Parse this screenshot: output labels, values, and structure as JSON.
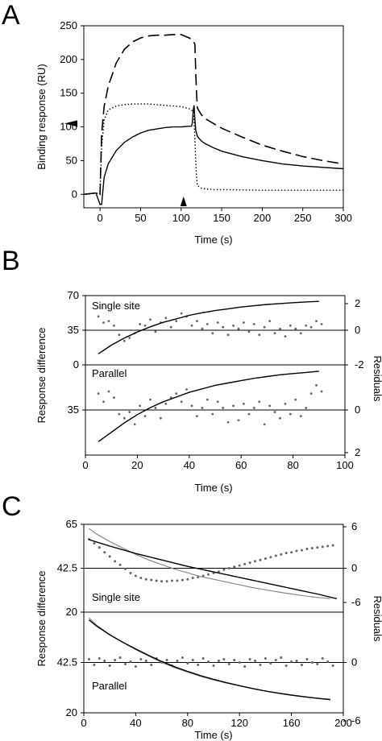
{
  "panel_labels": [
    "A",
    "B",
    "C"
  ],
  "chart_data": [
    {
      "panel": "A",
      "type": "line",
      "xlabel": "Time (s)",
      "ylabel": "Binding response (RU)",
      "xlim": [
        -20,
        300
      ],
      "ylim": [
        -20,
        250
      ],
      "xticks": [
        "0",
        "50",
        "100",
        "150",
        "200",
        "250",
        "300"
      ],
      "yticks": [
        "0",
        "50",
        "100",
        "150",
        "200",
        "250"
      ],
      "markers": [
        {
          "type": "arrowhead-left",
          "axis": "y",
          "value": 105
        },
        {
          "type": "arrowhead-up",
          "axis": "x",
          "value": 103
        }
      ],
      "series": [
        {
          "style": "dashed",
          "x": [
            -20,
            -5,
            0,
            2,
            5,
            10,
            20,
            30,
            40,
            50,
            60,
            70,
            80,
            90,
            100,
            110,
            115,
            117,
            118,
            119,
            120,
            125,
            130,
            140,
            150,
            175,
            200,
            225,
            250,
            275,
            300
          ],
          "y": [
            0,
            2,
            0,
            90,
            130,
            160,
            195,
            215,
            226,
            232,
            235,
            236,
            236,
            237,
            237,
            232,
            228,
            222,
            180,
            150,
            128,
            118,
            112,
            105,
            98,
            85,
            73,
            64,
            56,
            50,
            45
          ]
        },
        {
          "style": "dotted",
          "x": [
            -20,
            -5,
            0,
            2,
            5,
            10,
            20,
            30,
            40,
            50,
            60,
            70,
            80,
            90,
            100,
            110,
            115,
            116,
            117,
            118,
            119,
            120,
            125,
            130,
            140,
            150,
            200,
            250,
            300
          ],
          "y": [
            0,
            2,
            0,
            70,
            110,
            125,
            131,
            133,
            134,
            134,
            134,
            133,
            132,
            131,
            130,
            127,
            123,
            110,
            80,
            50,
            25,
            13,
            9,
            8,
            7,
            7,
            6,
            6,
            6
          ]
        },
        {
          "style": "solid",
          "x": [
            -20,
            -5,
            0,
            2,
            5,
            10,
            20,
            30,
            40,
            50,
            60,
            70,
            80,
            90,
            100,
            110,
            113,
            114,
            115,
            116,
            117,
            118,
            120,
            125,
            130,
            140,
            150,
            175,
            200,
            225,
            250,
            275,
            300
          ],
          "y": [
            0,
            2,
            -15,
            -15,
            25,
            45,
            65,
            77,
            85,
            91,
            95,
            97,
            99,
            100,
            100,
            101,
            101,
            108,
            125,
            132,
            110,
            95,
            86,
            79,
            75,
            69,
            64,
            56,
            50,
            45,
            42,
            40,
            38
          ]
        }
      ]
    },
    {
      "panel": "B",
      "type": "scatter",
      "xlabel": "Time (s)",
      "ylabel": "Response difference",
      "y2label": "Residuals",
      "xlim": [
        0,
        100
      ],
      "xticks": [
        "0",
        "20",
        "40",
        "60",
        "80",
        "100"
      ],
      "subplots": [
        {
          "label": "Single site",
          "ylim": [
            0,
            70
          ],
          "y2lim": [
            -2,
            2
          ],
          "yticks": [
            "0",
            "35",
            "70"
          ],
          "y2ticks": [
            "-2",
            "0",
            "2"
          ],
          "fit": {
            "x": [
              5,
              10,
              15,
              20,
              25,
              30,
              35,
              40,
              45,
              50,
              55,
              60,
              65,
              70,
              75,
              80,
              85,
              90
            ],
            "y": [
              8,
              18,
              26,
              33,
              39,
              44,
              48,
              52,
              55,
              57.5,
              59.5,
              61.5,
              63,
              64.5,
              65.5,
              66.5,
              67.3,
              68
            ]
          },
          "residuals": {
            "x": [
              5,
              7,
              9,
              11,
              13,
              15,
              17,
              19,
              21,
              23,
              25,
              27,
              29,
              31,
              33,
              35,
              37,
              39,
              41,
              43,
              45,
              47,
              49,
              51,
              53,
              55,
              57,
              59,
              61,
              63,
              65,
              67,
              69,
              71,
              73,
              75,
              77,
              79,
              81,
              83,
              85,
              87,
              89,
              91
            ],
            "y": [
              0.9,
              0.5,
              0.6,
              0.3,
              -0.3,
              -0.7,
              -0.5,
              -0.2,
              0.4,
              0.3,
              0.7,
              -0.1,
              0.5,
              0.8,
              0.2,
              0.6,
              1.1,
              0.9,
              0.3,
              0.6,
              0.1,
              0.4,
              -0.2,
              0.5,
              0.2,
              -0.3,
              0.3,
              0.1,
              0.5,
              -0.1,
              0.4,
              -0.3,
              0.2,
              0.6,
              -0.2,
              0.1,
              -0.4,
              0.3,
              0.1,
              -0.2,
              0.3,
              0.2,
              0.6,
              0.4
            ]
          }
        },
        {
          "label": "Parallel",
          "ylim": [
            0,
            70
          ],
          "y2lim": [
            -2,
            2
          ],
          "yticks": [
            "0",
            "35"
          ],
          "y2ticks": [
            "-2",
            "0",
            "2"
          ],
          "fit": {
            "x": [
              5,
              10,
              15,
              20,
              25,
              30,
              35,
              40,
              45,
              50,
              55,
              60,
              65,
              70,
              75,
              80,
              85,
              90
            ],
            "y": [
              8,
              16,
              24,
              31,
              37,
              42,
              46,
              50,
              53,
              56,
              58,
              60,
              62,
              63.5,
              65,
              66,
              67,
              68
            ]
          },
          "residuals": {
            "x": [
              5,
              7,
              9,
              11,
              13,
              15,
              17,
              19,
              21,
              23,
              25,
              27,
              29,
              31,
              33,
              35,
              37,
              39,
              41,
              43,
              45,
              47,
              49,
              51,
              53,
              55,
              57,
              59,
              61,
              63,
              65,
              67,
              69,
              71,
              73,
              75,
              77,
              79,
              81,
              83,
              85,
              87,
              89,
              91
            ],
            "y": [
              0.8,
              0.4,
              0.9,
              0.6,
              -0.2,
              -0.4,
              -0.1,
              -0.7,
              0.2,
              -0.3,
              0.5,
              0.1,
              -0.4,
              0.3,
              0.6,
              0.8,
              0.4,
              1.0,
              0.2,
              -0.3,
              0.1,
              0.5,
              -0.2,
              0.4,
              0.1,
              -0.6,
              0.2,
              -0.5,
              0.3,
              -0.2,
              0.1,
              0.4,
              -0.7,
              0.2,
              -0.1,
              -0.4,
              0.3,
              -0.2,
              0.5,
              -0.3,
              0.1,
              0.8,
              1.2,
              0.9
            ]
          }
        }
      ]
    },
    {
      "panel": "C",
      "type": "scatter",
      "xlabel": "Time (s)",
      "ylabel": "Response difference",
      "y2label": "Residuals",
      "xlim": [
        0,
        200
      ],
      "xticks": [
        "0",
        "40",
        "80",
        "120",
        "160",
        "200"
      ],
      "subplots": [
        {
          "label": "Single site",
          "ylim": [
            20,
            65
          ],
          "y2lim": [
            -6,
            6
          ],
          "yticks": [
            "65",
            "42.5"
          ],
          "y2ticks": [
            "-6",
            "0",
            "6"
          ],
          "data": {
            "x": [
              4,
              10,
              20,
              30,
              40,
              50,
              60,
              70,
              80,
              90,
              100,
              110,
              120,
              130,
              140,
              150,
              160,
              170,
              180,
              190
            ],
            "y": [
              64,
              61,
              57,
              53.5,
              50,
              47,
              44.5,
              42,
              40,
              38,
              36.5,
              35,
              33.5,
              32,
              30.8,
              29.6,
              28.5,
              27.5,
              26.7,
              26
            ]
          },
          "fit": {
            "x": [
              4,
              20,
              40,
              60,
              80,
              100,
              120,
              140,
              160,
              180,
              195
            ],
            "y": [
              58,
              54.5,
              50.5,
              47,
              43.5,
              40.5,
              37.5,
              34.5,
              31.5,
              28.5,
              26
            ]
          },
          "residuals": {
            "x": [
              4,
              8,
              12,
              16,
              20,
              24,
              28,
              32,
              36,
              40,
              44,
              48,
              52,
              56,
              60,
              64,
              68,
              72,
              76,
              80,
              84,
              88,
              92,
              96,
              100,
              104,
              108,
              112,
              116,
              120,
              124,
              128,
              132,
              136,
              140,
              144,
              148,
              152,
              156,
              160,
              164,
              168,
              172,
              176,
              180,
              184,
              188,
              192
            ],
            "y": [
              4.2,
              3.6,
              3.0,
              2.3,
              1.7,
              1.0,
              0.5,
              -0.1,
              -0.7,
              -1.1,
              -1.4,
              -1.6,
              -1.7,
              -1.8,
              -1.9,
              -1.9,
              -1.8,
              -1.8,
              -1.7,
              -1.6,
              -1.4,
              -1.3,
              -1.1,
              -0.9,
              -0.7,
              -0.5,
              -0.2,
              0.0,
              0.2,
              0.4,
              0.6,
              0.8,
              1.0,
              1.2,
              1.4,
              1.6,
              1.8,
              2.0,
              2.2,
              2.3,
              2.5,
              2.6,
              2.8,
              2.9,
              3.0,
              3.1,
              3.2,
              3.3
            ]
          }
        },
        {
          "label": "Parallel",
          "ylim": [
            20,
            65
          ],
          "y2lim": [
            -6,
            6
          ],
          "yticks": [
            "20",
            "42.5",
            "20"
          ],
          "y2ticks": [
            "-6",
            "0",
            "6"
          ],
          "data": {
            "x": [
              4,
              10,
              20,
              30,
              40,
              50,
              60,
              70,
              80,
              90,
              100,
              110,
              120,
              130,
              140,
              150,
              160,
              170,
              180,
              190
            ],
            "y": [
              63.5,
              60,
              55.5,
              52,
              48.5,
              45.5,
              42.5,
              40,
              38,
              36,
              34.3,
              32.8,
              31.5,
              30.2,
              29,
              28,
              27.1,
              26.3,
              25.6,
              25
            ]
          },
          "fit": {
            "x": [
              4,
              10,
              20,
              30,
              40,
              50,
              60,
              70,
              80,
              90,
              100,
              110,
              120,
              130,
              140,
              150,
              160,
              170,
              180,
              190
            ],
            "y": [
              62.5,
              59.5,
              55.5,
              52,
              48.8,
              45.8,
              43,
              40.5,
              38.3,
              36.3,
              34.6,
              33,
              31.6,
              30.3,
              29.1,
              28.1,
              27.2,
              26.4,
              25.7,
              25.1
            ]
          },
          "residuals": {
            "x": [
              4,
              8,
              12,
              16,
              20,
              24,
              28,
              32,
              36,
              40,
              44,
              48,
              52,
              56,
              60,
              64,
              68,
              72,
              76,
              80,
              84,
              88,
              92,
              96,
              100,
              104,
              108,
              112,
              116,
              120,
              124,
              128,
              132,
              136,
              140,
              144,
              148,
              152,
              156,
              160,
              164,
              168,
              172,
              176,
              180,
              184,
              188,
              192
            ],
            "y": [
              0.4,
              -0.3,
              0.5,
              0.2,
              -0.4,
              0.3,
              0.6,
              -0.2,
              0.1,
              -0.5,
              0.4,
              0.2,
              -0.3,
              0.5,
              0.0,
              0.3,
              -0.4,
              0.2,
              0.6,
              -0.1,
              0.3,
              -0.3,
              0.5,
              0.1,
              -0.4,
              0.2,
              0.4,
              -0.2,
              0.3,
              0.0,
              -0.5,
              0.4,
              0.2,
              -0.3,
              0.5,
              -0.1,
              0.3,
              0.6,
              -0.4,
              0.1,
              0.2,
              -0.3,
              0.4,
              0.0,
              -0.2,
              0.5,
              0.1,
              -0.4
            ]
          }
        }
      ]
    }
  ]
}
